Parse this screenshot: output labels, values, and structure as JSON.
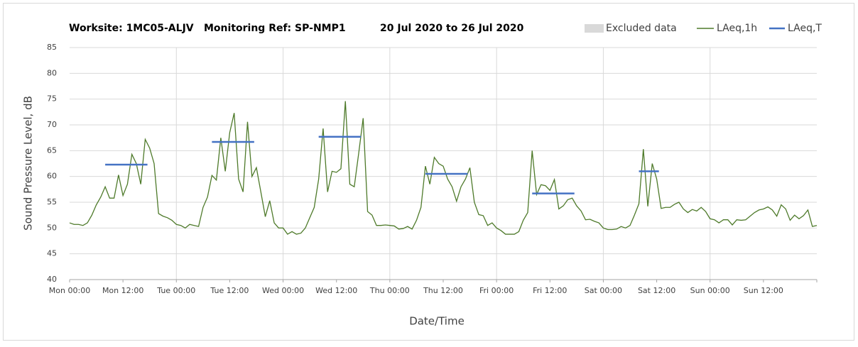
{
  "chart_data": {
    "type": "line",
    "title_parts": [
      "Worksite: 1MC05-ALJV",
      "Monitoring Ref: SP-NMP1",
      "20 Jul 2020 to 26 Jul 2020"
    ],
    "y_label": "Sound Pressure Level, dB",
    "x_label": "Date/Time",
    "excluded_data": {
      "name": "Excluded data",
      "color": "#d9d9d9"
    },
    "xlim": [
      0,
      168
    ],
    "xticks": [
      {
        "value": 0,
        "label": "Mon 00:00"
      },
      {
        "value": 12,
        "label": "Mon 12:00"
      },
      {
        "value": 24,
        "label": "Tue 00:00"
      },
      {
        "value": 36,
        "label": "Tue 12:00"
      },
      {
        "value": 48,
        "label": "Wed 00:00"
      },
      {
        "value": 60,
        "label": "Wed 12:00"
      },
      {
        "value": 72,
        "label": "Thu 00:00"
      },
      {
        "value": 84,
        "label": "Thu 12:00"
      },
      {
        "value": 96,
        "label": "Fri 00:00"
      },
      {
        "value": 108,
        "label": "Fri 12:00"
      },
      {
        "value": 120,
        "label": "Sat 00:00"
      },
      {
        "value": 132,
        "label": "Sat 12:00"
      },
      {
        "value": 144,
        "label": "Sun 00:00"
      },
      {
        "value": 156,
        "label": "Sun 12:00"
      }
    ],
    "ylim": [
      40,
      85
    ],
    "yticks": [
      40,
      45,
      50,
      55,
      60,
      65,
      70,
      75,
      80,
      85
    ],
    "grid": true,
    "x": [
      0,
      1,
      2,
      3,
      4,
      5,
      6,
      7,
      8,
      9,
      10,
      11,
      12,
      13,
      14,
      15,
      16,
      17,
      18,
      19,
      20,
      21,
      22,
      23,
      24,
      25,
      26,
      27,
      28,
      29,
      30,
      31,
      32,
      33,
      34,
      35,
      36,
      37,
      38,
      39,
      40,
      41,
      42,
      43,
      44,
      45,
      46,
      47,
      48,
      49,
      50,
      51,
      52,
      53,
      54,
      55,
      56,
      57,
      58,
      59,
      60,
      61,
      62,
      63,
      64,
      65,
      66,
      67,
      68,
      69,
      70,
      71,
      72,
      73,
      74,
      75,
      76,
      77,
      78,
      79,
      80,
      81,
      82,
      83,
      84,
      85,
      86,
      87,
      88,
      89,
      90,
      91,
      92,
      93,
      94,
      95,
      96,
      97,
      98,
      99,
      100,
      101,
      102,
      103,
      104,
      105,
      106,
      107,
      108,
      109,
      110,
      111,
      112,
      113,
      114,
      115,
      116,
      117,
      118,
      119,
      120,
      121,
      122,
      123,
      124,
      125,
      126,
      127,
      128,
      129,
      130,
      131,
      132,
      133,
      134,
      135,
      136,
      137,
      138,
      139,
      140,
      141,
      142,
      143,
      144,
      145,
      146,
      147,
      148,
      149,
      150,
      151,
      152,
      153,
      154,
      155,
      156,
      157,
      158,
      159,
      160,
      161,
      162,
      163,
      164,
      165,
      166,
      167,
      168
    ],
    "series": [
      {
        "name": "LAeq,1h",
        "color": "#4e7a2a",
        "values": [
          51,
          50.7,
          50.7,
          50.5,
          51,
          52.5,
          54.5,
          56,
          58,
          55.8,
          55.8,
          60.3,
          56.3,
          58.5,
          64.3,
          62.5,
          58.5,
          67.2,
          65.5,
          62.5,
          52.8,
          52.3,
          52,
          51.5,
          50.7,
          50.5,
          50,
          50.7,
          50.5,
          50.3,
          54,
          56,
          60.2,
          59.3,
          67.5,
          61,
          68.5,
          72.3,
          59.5,
          57,
          70.6,
          60,
          61.7,
          57,
          52.2,
          55.3,
          51,
          50,
          50,
          48.8,
          49.3,
          48.8,
          49,
          50,
          52,
          54,
          59.5,
          69.3,
          57,
          61,
          60.8,
          61.5,
          74.6,
          58.5,
          58,
          64.5,
          71.3,
          53.2,
          52.5,
          50.5,
          50.5,
          50.6,
          50.5,
          50.4,
          49.8,
          49.9,
          50.3,
          49.8,
          51.5,
          54,
          62,
          58.5,
          63.7,
          62.5,
          62,
          59.5,
          58,
          55.2,
          58,
          59.5,
          61.7,
          55,
          52.6,
          52.4,
          50.5,
          51,
          50,
          49.5,
          48.8,
          48.8,
          48.8,
          49.3,
          51.5,
          53,
          65,
          56.5,
          58.4,
          58.2,
          57.3,
          59.4,
          53.7,
          54.3,
          55.5,
          55.8,
          54.3,
          53.3,
          51.6,
          51.7,
          51.3,
          51,
          50,
          49.7,
          49.7,
          49.8,
          50.3,
          50,
          50.5,
          52.5,
          54.7,
          65.3,
          54.2,
          62.5,
          59.5,
          53.8,
          54,
          54,
          54.6,
          55,
          53.7,
          53,
          53.6,
          53.3,
          54,
          53.2,
          51.8,
          51.6,
          51,
          51.6,
          51.6,
          50.6,
          51.6,
          51.5,
          51.6,
          52.3,
          53,
          53.5,
          53.7,
          54.1,
          53.5,
          52.3,
          54.5,
          53.7,
          51.5,
          52.5,
          51.8,
          52.4,
          53.5,
          50.3,
          50.5
        ]
      }
    ],
    "segments": {
      "name": "LAeq,T",
      "color": "#4472c4",
      "items": [
        {
          "x": [
            8,
            17.5
          ],
          "value": 62.3
        },
        {
          "x": [
            32,
            41.5
          ],
          "value": 66.7
        },
        {
          "x": [
            56,
            65.5
          ],
          "value": 67.7
        },
        {
          "x": [
            80,
            89.5
          ],
          "value": 60.5
        },
        {
          "x": [
            104,
            113.5
          ],
          "value": 56.7
        },
        {
          "x": [
            128,
            132.5
          ],
          "value": 61
        }
      ]
    }
  }
}
